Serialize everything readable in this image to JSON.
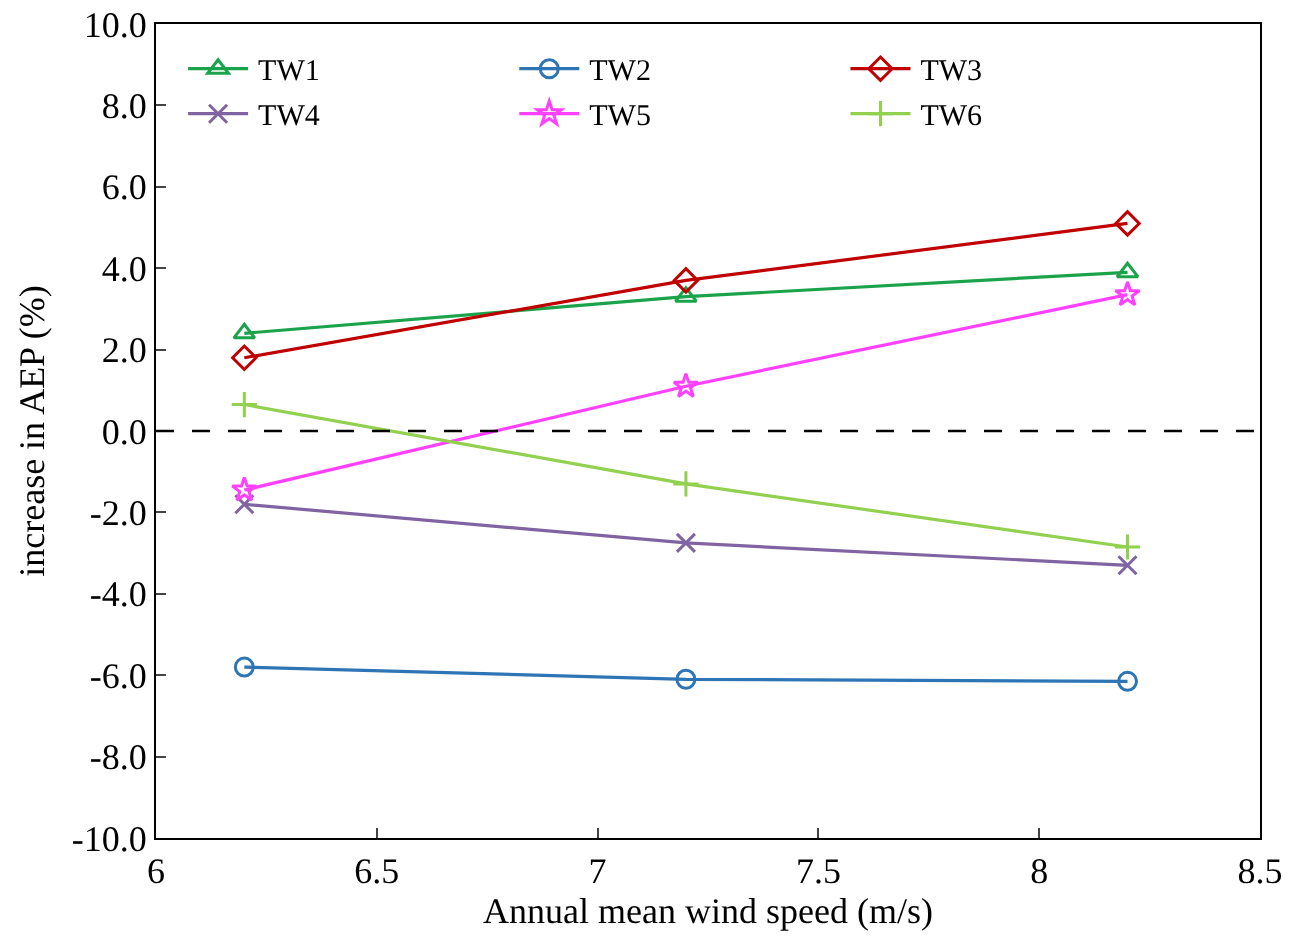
{
  "chart_data": {
    "type": "line",
    "xlabel": "Annual mean wind speed (m/s)",
    "ylabel": "increase in AEP (%)",
    "x": [
      6.2,
      7.2,
      8.2
    ],
    "series": [
      {
        "name": "TW1",
        "color": "#1aa34a",
        "marker": "triangle",
        "values": [
          2.4,
          3.3,
          3.9
        ]
      },
      {
        "name": "TW2",
        "color": "#2e75b6",
        "marker": "circle",
        "values": [
          -5.8,
          -6.1,
          -6.15
        ]
      },
      {
        "name": "TW3",
        "color": "#c00000",
        "marker": "diamond",
        "values": [
          1.8,
          3.7,
          5.1
        ]
      },
      {
        "name": "TW4",
        "color": "#8064a2",
        "marker": "x",
        "values": [
          -1.8,
          -2.75,
          -3.3
        ]
      },
      {
        "name": "TW5",
        "color": "#ff40ff",
        "marker": "star",
        "values": [
          -1.45,
          1.1,
          3.35
        ]
      },
      {
        "name": "TW6",
        "color": "#92d050",
        "marker": "cross",
        "values": [
          0.65,
          -1.3,
          -2.85
        ]
      }
    ],
    "xlim": [
      6,
      8.5
    ],
    "xticks": [
      6,
      6.5,
      7,
      7.5,
      8,
      8.5
    ],
    "ylim": [
      -10,
      10
    ],
    "yticks": [
      {
        "value": -10,
        "label": "-10.0"
      },
      {
        "value": -8,
        "label": "-8.0"
      },
      {
        "value": -6,
        "label": "-6.0"
      },
      {
        "value": -4,
        "label": "-4.0"
      },
      {
        "value": -2,
        "label": "-2.0"
      },
      {
        "value": 0,
        "label": "0.0"
      },
      {
        "value": 2,
        "label": "2.0"
      },
      {
        "value": 4,
        "label": "4.0"
      },
      {
        "value": 6,
        "label": "6.0"
      },
      {
        "value": 8,
        "label": "8.0"
      },
      {
        "value": 10,
        "label": "10.0"
      }
    ],
    "ref_lines": [
      {
        "axis": "y",
        "value": 0,
        "color": "#000000",
        "line_style": "dashed"
      }
    ],
    "grid": false,
    "legend": "top left",
    "line_style": "solid"
  }
}
